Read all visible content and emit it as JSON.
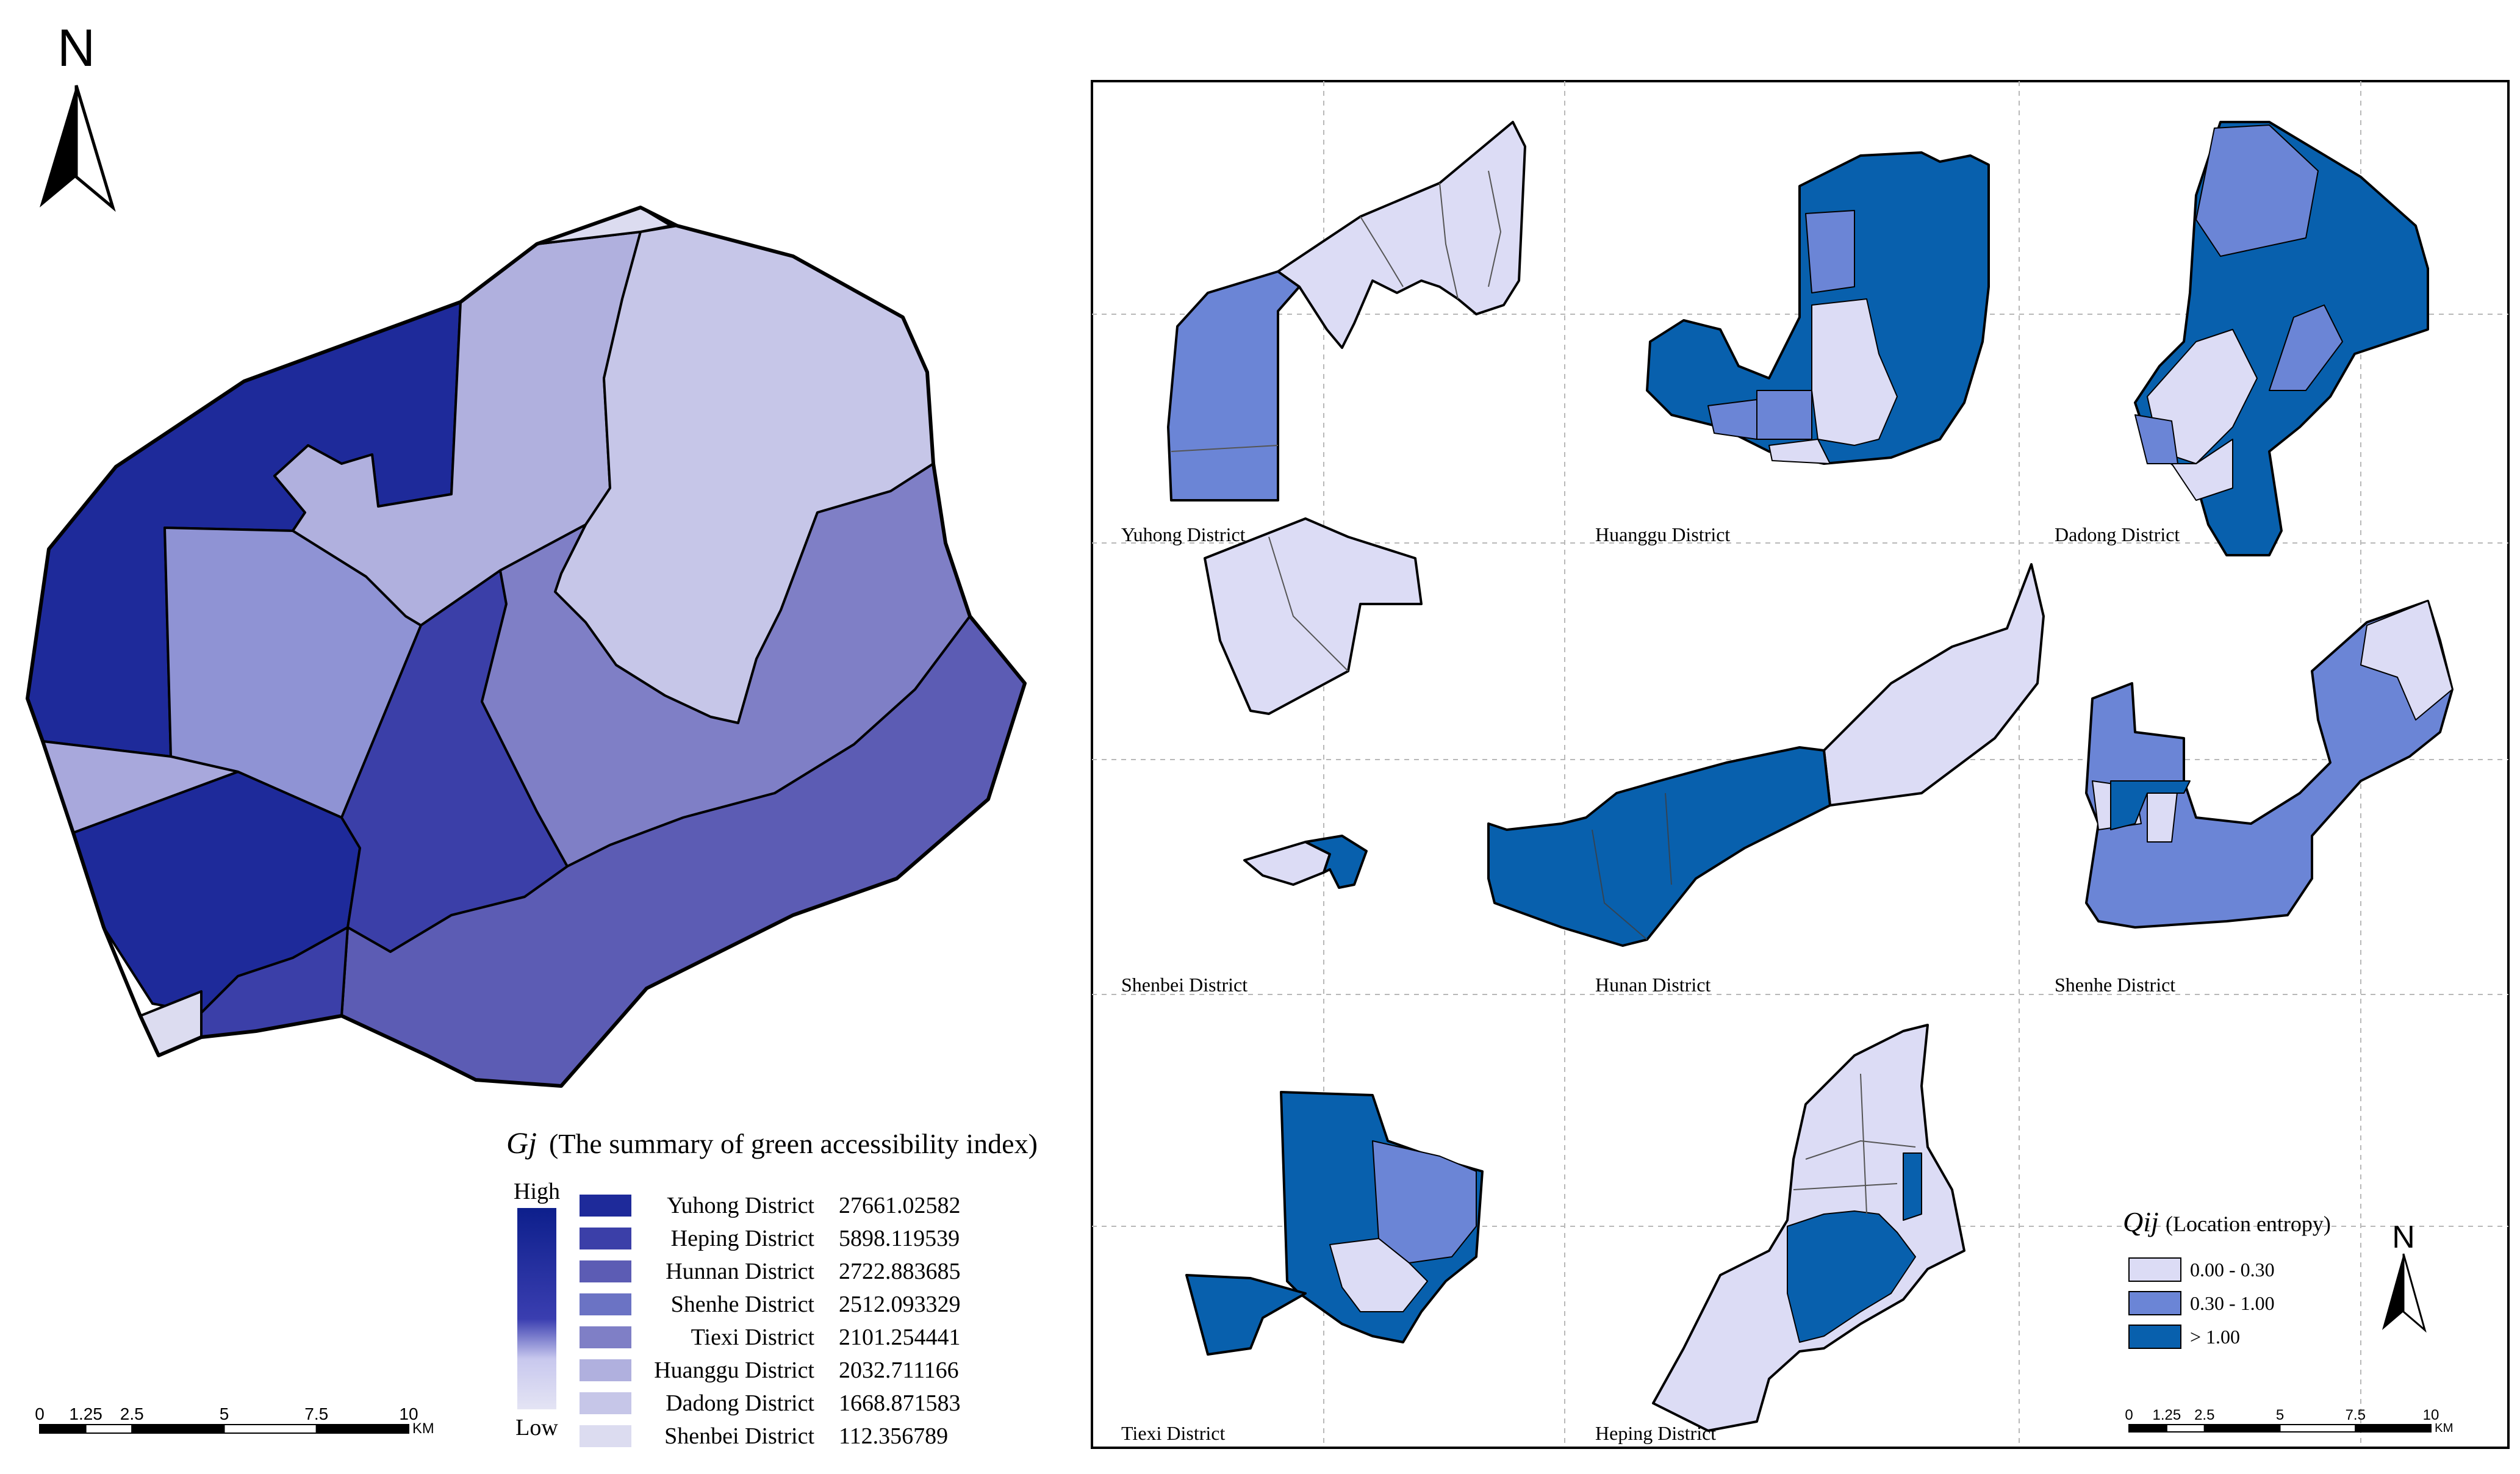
{
  "left_map": {
    "north_label": "N",
    "legend": {
      "title_symbol": "Gj",
      "title_text": "(The summary of green accessibility index)",
      "ramp_high": "High",
      "ramp_low": "Low",
      "entries": [
        {
          "name": "Yuhong District",
          "value": "27661.02582",
          "color": "#1e2a9a"
        },
        {
          "name": "Heping District",
          "value": "5898.119539",
          "color": "#3b3fa8"
        },
        {
          "name": "Hunnan District",
          "value": "2722.883685",
          "color": "#5c5cb4"
        },
        {
          "name": "Shenhe District",
          "value": "2512.093329",
          "color": "#6b73c4"
        },
        {
          "name": "Tiexi District",
          "value": "2101.254441",
          "color": "#7f7fc6"
        },
        {
          "name": "Huanggu District",
          "value": "2032.711166",
          "color": "#b0b0de"
        },
        {
          "name": "Dadong District",
          "value": "1668.871583",
          "color": "#c6c6e8"
        },
        {
          "name": "Shenbei District",
          "value": "112.356789",
          "color": "#dcdcf0"
        }
      ]
    },
    "scale": {
      "ticks": [
        "0",
        "1.25",
        "2.5",
        "5",
        "7.5",
        "10"
      ],
      "unit": "KM"
    }
  },
  "right_panel": {
    "panels": [
      {
        "label": "Yuhong District"
      },
      {
        "label": "Huanggu District"
      },
      {
        "label": "Dadong District"
      },
      {
        "label": "Shenbei District"
      },
      {
        "label": "Hunan District"
      },
      {
        "label": "Shenhe District"
      },
      {
        "label": "Tiexi District"
      },
      {
        "label": "Heping District"
      }
    ],
    "legend": {
      "title_symbol": "Qij",
      "title_text": "(Location entropy)",
      "classes": [
        {
          "label": "0.00 - 0.30",
          "color": "#dcdcf5"
        },
        {
          "label": "0.30 - 1.00",
          "color": "#6b85d6"
        },
        {
          "label": "> 1.00",
          "color": "#0860ad"
        }
      ]
    },
    "north_label": "N",
    "scale": {
      "ticks": [
        "0",
        "1.25",
        "2.5",
        "5",
        "7.5",
        "10"
      ],
      "unit": "KM"
    }
  }
}
